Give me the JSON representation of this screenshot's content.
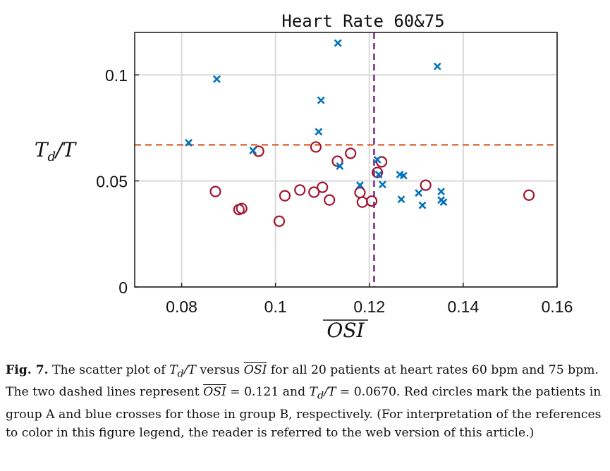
{
  "chart_data": {
    "type": "scatter",
    "title": "Heart Rate 60&75",
    "xlabel": "OSI",
    "ylabel": "Td/T",
    "xlim": [
      0.07,
      0.16
    ],
    "ylim": [
      0,
      0.12
    ],
    "x_ticks": [
      "0.08",
      "0.1",
      "0.12",
      "0.14",
      "0.16"
    ],
    "y_ticks": [
      "0",
      "0.05",
      "0.1"
    ],
    "x_tick_values": [
      0.08,
      0.1,
      0.12,
      0.14,
      0.16
    ],
    "y_tick_values": [
      0,
      0.05,
      0.1
    ],
    "grid": true,
    "reference_lines": [
      {
        "orientation": "vertical",
        "value": 0.121,
        "color": "#7e2f8e",
        "style": "dashed"
      },
      {
        "orientation": "horizontal",
        "value": 0.067,
        "color": "#d95319",
        "style": "dashed"
      }
    ],
    "series": [
      {
        "marker": "circle",
        "color": "#a2142f",
        "points": [
          [
            0.0872,
            0.045
          ],
          [
            0.0922,
            0.0365
          ],
          [
            0.0928,
            0.037
          ],
          [
            0.0964,
            0.064
          ],
          [
            0.1008,
            0.031
          ],
          [
            0.102,
            0.043
          ],
          [
            0.1052,
            0.0457
          ],
          [
            0.1082,
            0.0447
          ],
          [
            0.1086,
            0.066
          ],
          [
            0.11,
            0.047
          ],
          [
            0.1115,
            0.041
          ],
          [
            0.1132,
            0.0593
          ],
          [
            0.116,
            0.063
          ],
          [
            0.118,
            0.0445
          ],
          [
            0.1185,
            0.04
          ],
          [
            0.1205,
            0.0405
          ],
          [
            0.1217,
            0.054
          ],
          [
            0.1226,
            0.059
          ],
          [
            0.132,
            0.048
          ],
          [
            0.154,
            0.0433
          ]
        ]
      },
      {
        "marker": "cross",
        "color": "#0072bd",
        "points": [
          [
            0.0815,
            0.068
          ],
          [
            0.0875,
            0.098
          ],
          [
            0.0952,
            0.0643
          ],
          [
            0.1092,
            0.0732
          ],
          [
            0.1097,
            0.088
          ],
          [
            0.1133,
            0.115
          ],
          [
            0.1137,
            0.057
          ],
          [
            0.118,
            0.048
          ],
          [
            0.1217,
            0.06
          ],
          [
            0.122,
            0.053
          ],
          [
            0.1228,
            0.0483
          ],
          [
            0.1265,
            0.053
          ],
          [
            0.1273,
            0.0525
          ],
          [
            0.1268,
            0.0413
          ],
          [
            0.1305,
            0.0443
          ],
          [
            0.1313,
            0.0385
          ],
          [
            0.1345,
            0.104
          ],
          [
            0.1353,
            0.045
          ],
          [
            0.1353,
            0.041
          ],
          [
            0.1358,
            0.04
          ]
        ]
      }
    ]
  },
  "caption": {
    "label": "Fig. 7.",
    "parts": {
      "p1": "The scatter plot of ",
      "td": "T",
      "td_sub": "d",
      "slash_t": "/T",
      "p2": " versus ",
      "osi": "OSI",
      "p3": " for all 20 patients at heart rates 60 bpm and 75 bpm. The two dashed lines represent ",
      "osi2": "OSI",
      "p4": " = 0.121 and ",
      "td2": "T",
      "td2_sub": "d",
      "slash_t2": "/T",
      "p5": " = 0.0670. Red circles mark the patients in group A and blue crosses for those in group B, respectively. (For interpretation of the references to color in this figure legend, the reader is referred to the web version of this article.)"
    }
  }
}
